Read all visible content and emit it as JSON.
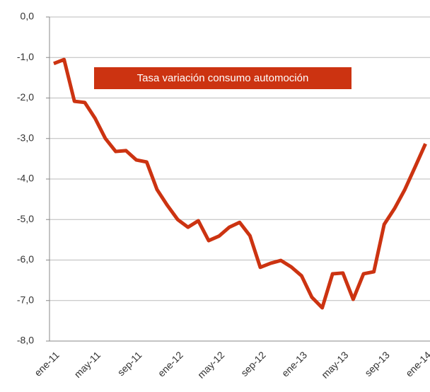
{
  "chart_data": {
    "type": "line",
    "categories": [
      "ene-11",
      null,
      null,
      null,
      "may-11",
      null,
      null,
      null,
      "sep-11",
      null,
      null,
      null,
      "ene-12",
      null,
      null,
      null,
      "may-12",
      null,
      null,
      null,
      "sep-12",
      null,
      null,
      null,
      "ene-13",
      null,
      null,
      null,
      "may-13",
      null,
      null,
      null,
      "sep-13",
      null,
      null,
      null,
      "ene-14"
    ],
    "series": [
      {
        "name": "Tasa variación consumo automoción",
        "color": "#cc3311",
        "values": [
          -1.15,
          -1.05,
          -2.08,
          -2.11,
          -2.5,
          -3.0,
          -3.32,
          -3.3,
          -3.53,
          -3.58,
          -4.26,
          -4.65,
          -5.0,
          -5.19,
          -5.03,
          -5.52,
          -5.41,
          -5.19,
          -5.07,
          -5.4,
          -6.18,
          -6.08,
          -6.01,
          -6.17,
          -6.39,
          -6.92,
          -7.18,
          -6.34,
          -6.32,
          -6.97,
          -6.34,
          -6.29,
          -5.12,
          -4.73,
          -4.26,
          -3.7,
          -3.13
        ]
      }
    ],
    "ylim": [
      -8,
      0
    ],
    "yticks": [
      {
        "value": 0,
        "label": "0,0"
      },
      {
        "value": -1,
        "label": "-1,0"
      },
      {
        "value": -2,
        "label": "-2,0"
      },
      {
        "value": -3,
        "label": "-3,0"
      },
      {
        "value": -4,
        "label": "-4,0"
      },
      {
        "value": -5,
        "label": "-5,0"
      },
      {
        "value": -6,
        "label": "-6,0"
      },
      {
        "value": -7,
        "label": "-7,0"
      },
      {
        "value": -8,
        "label": "-8,0"
      }
    ],
    "grid": true
  }
}
